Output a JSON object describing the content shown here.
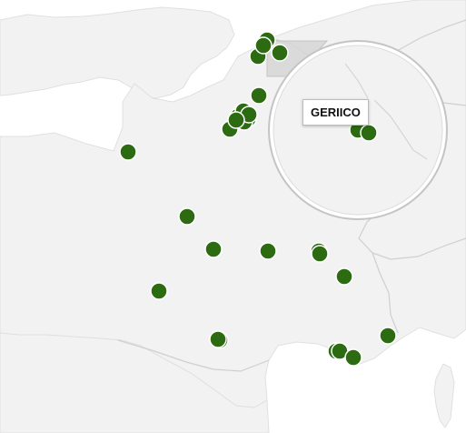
{
  "map": {
    "colors": {
      "sea": "#ffffff",
      "land": "#f2f2f2",
      "border": "#cfcfcf",
      "marker_fill": "#2d6b12",
      "marker_stroke": "#ffffff",
      "lens_ring": "#bdbdbd",
      "selection_box": "#d6d6d6"
    },
    "marker_count": 30,
    "magnifier": {
      "visible": true,
      "tooltip_label": "GERIICO"
    }
  }
}
